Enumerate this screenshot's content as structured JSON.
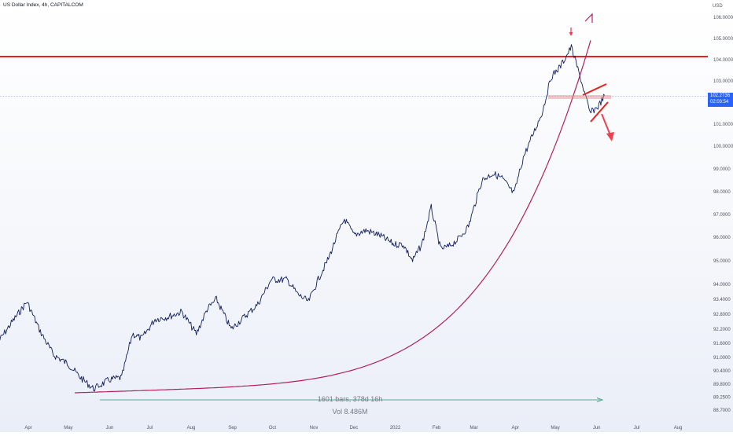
{
  "header": {
    "title": "US Dollar Index, 4h, CAPITALCOM"
  },
  "price_scale": {
    "currency": "USD",
    "current_price": "102.2736",
    "countdown": "02:03:54"
  },
  "colors": {
    "price_line": "#131f5c",
    "curve": "#b0205e",
    "resistance": "#e8201e",
    "pattern": "#e8201e",
    "arrow_down": "#f04050",
    "range_measure": "#2e8f6e",
    "current_price_tag": "#2962ff",
    "axis_text": "#50535e"
  },
  "annotations": {
    "range_label": "1601 bars, 378d 16h",
    "volume_label": "Vol 8.486M"
  },
  "chart_data": {
    "type": "line",
    "title": "US Dollar Index, 4h, CAPITALCOM",
    "ylabel": "USD",
    "ylim": [
      88.6,
      106.4
    ],
    "x_ticks": [
      "Apr",
      "May",
      "Jun",
      "Jul",
      "Aug",
      "Sep",
      "Oct",
      "Nov",
      "Dec",
      "2022",
      "Feb",
      "Mar",
      "Apr",
      "May",
      "Jun",
      "Jul",
      "Aug"
    ],
    "y_ticks": [
      "106.0000",
      "105.0000",
      "104.0000",
      "103.0000",
      "102.0000",
      "101.0000",
      "100.0000",
      "99.0000",
      "98.0000",
      "97.0000",
      "96.0000",
      "95.0000",
      "94.0000",
      "93.4000",
      "92.8000",
      "92.2000",
      "91.6000",
      "91.0000",
      "90.4000",
      "89.8000",
      "89.2500",
      "88.7000"
    ],
    "y_tick_values": [
      106.0,
      105.0,
      104.0,
      103.0,
      102.0,
      101.0,
      100.0,
      99.0,
      98.0,
      97.0,
      96.0,
      95.0,
      94.0,
      93.4,
      92.8,
      92.2,
      91.6,
      91.0,
      90.4,
      89.8,
      89.25,
      88.7
    ],
    "series": [
      {
        "x": [
          "Mar 10 2021",
          "Mar 20 2021",
          "Mar 31 2021",
          "Apr 10 2021",
          "Apr 20 2021",
          "May 1 2021",
          "May 10 2021",
          "May 20 2021",
          "May 26 2021",
          "Jun 1 2021",
          "Jun 10 2021",
          "Jun 18 2021",
          "Jun 25 2021",
          "Jul 5 2021",
          "Jul 15 2021",
          "Jul 25 2021",
          "Aug 5 2021",
          "Aug 13 2021",
          "Aug 20 2021",
          "Aug 31 2021",
          "Sep 10 2021",
          "Sep 20 2021",
          "Sep 30 2021",
          "Oct 12 2021",
          "Oct 20 2021",
          "Oct 28 2021",
          "Nov 5 2021",
          "Nov 12 2021",
          "Nov 18 2021",
          "Nov 24 2021",
          "Dec 1 2021",
          "Dec 10 2021",
          "Dec 20 2021",
          "Dec 31 2021",
          "Jan 7 2022",
          "Jan 14 2022",
          "Jan 21 2022",
          "Jan 28 2022",
          "Feb 4 2022",
          "Feb 10 2022",
          "Feb 17 2022",
          "Feb 25 2022",
          "Mar 7 2022",
          "Mar 15 2022",
          "Mar 22 2022",
          "Mar 31 2022",
          "Apr 7 2022",
          "Apr 14 2022",
          "Apr 21 2022",
          "Apr 28 2022",
          "May 5 2022",
          "May 13 2022",
          "May 20 2022",
          "May 27 2022",
          "Jun 2 2022",
          "Jun 7 2022"
        ],
        "values": [
          91.7,
          92.5,
          93.3,
          92.1,
          91.1,
          90.7,
          90.1,
          89.6,
          89.8,
          90.0,
          90.1,
          92.0,
          91.8,
          92.6,
          92.7,
          92.9,
          92.0,
          93.0,
          93.4,
          92.2,
          92.7,
          93.2,
          94.2,
          94.2,
          93.6,
          93.3,
          94.3,
          95.1,
          96.0,
          96.8,
          96.1,
          96.3,
          96.1,
          95.7,
          95.7,
          95.0,
          95.7,
          97.3,
          95.5,
          95.6,
          95.9,
          96.5,
          98.5,
          98.8,
          98.6,
          97.9,
          99.5,
          100.5,
          101.5,
          103.2,
          103.7,
          104.6,
          103.1,
          101.5,
          101.8,
          102.3
        ]
      }
    ]
  }
}
